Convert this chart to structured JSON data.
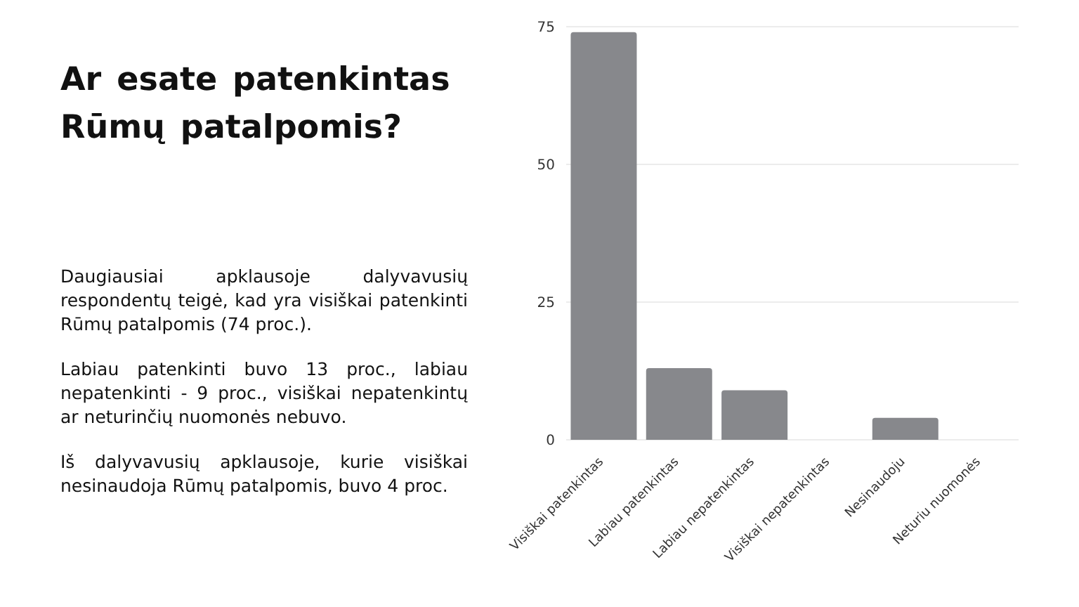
{
  "chart_data": {
    "type": "bar",
    "title": "Ar esate patenkintas Rūmų patalpomis?",
    "annotations": [
      "Daugiausiai apklausoje dalyvavusių respondentų teigė, kad yra visiškai patenkinti Rūmų patalpomis (74 proc.).",
      "Labiau patenkinti buvo 13 proc., labiau nepatenkinti - 9 proc., visiškai nepatenkintų ar neturinčių nuomonės nebuvo.",
      "Iš dalyvavusių apklausoje, kurie visiškai nesinaudoja Rūmų patalpomis, buvo 4 proc."
    ],
    "categories": [
      "Visiškai patenkintas",
      "Labiau patenkintas",
      "Labiau nepatenkintas",
      "Visiškai nepatenkintas",
      "Nesinaudoju",
      "Neturiu nuomonės"
    ],
    "values": [
      74,
      13,
      9,
      0,
      4,
      0
    ],
    "color": "#87888c",
    "ylim": [
      0,
      75
    ],
    "yticks": [
      0,
      25,
      50,
      75
    ],
    "grid": "y",
    "legend": false
  }
}
